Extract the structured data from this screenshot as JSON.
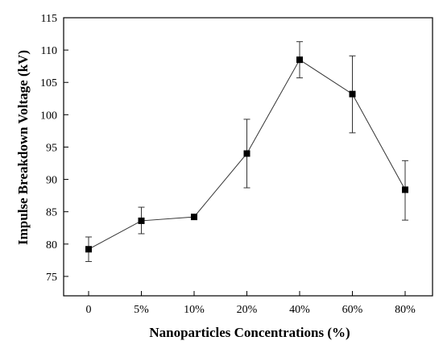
{
  "chart_data": {
    "type": "line",
    "title": "",
    "xlabel": "Nanoparticles Concentrations (%)",
    "ylabel": "Impulse Breakdown Voltage (kV)",
    "categories": [
      "0",
      "5%",
      "10%",
      "20%",
      "40%",
      "60%",
      "80%"
    ],
    "ylim": [
      72,
      115
    ],
    "yticks": [
      75,
      80,
      85,
      90,
      95,
      100,
      105,
      110,
      115
    ],
    "grid": false,
    "series": [
      {
        "values": [
          79.2,
          83.6,
          84.2,
          94.0,
          108.5,
          103.2,
          88.4
        ],
        "err_low": [
          1.9,
          2.0,
          0.0,
          5.3,
          2.8,
          6.0,
          4.7
        ],
        "err_high": [
          1.9,
          2.1,
          0.0,
          5.3,
          2.8,
          5.9,
          4.5
        ],
        "marker": "square",
        "color": "#000000"
      }
    ]
  }
}
